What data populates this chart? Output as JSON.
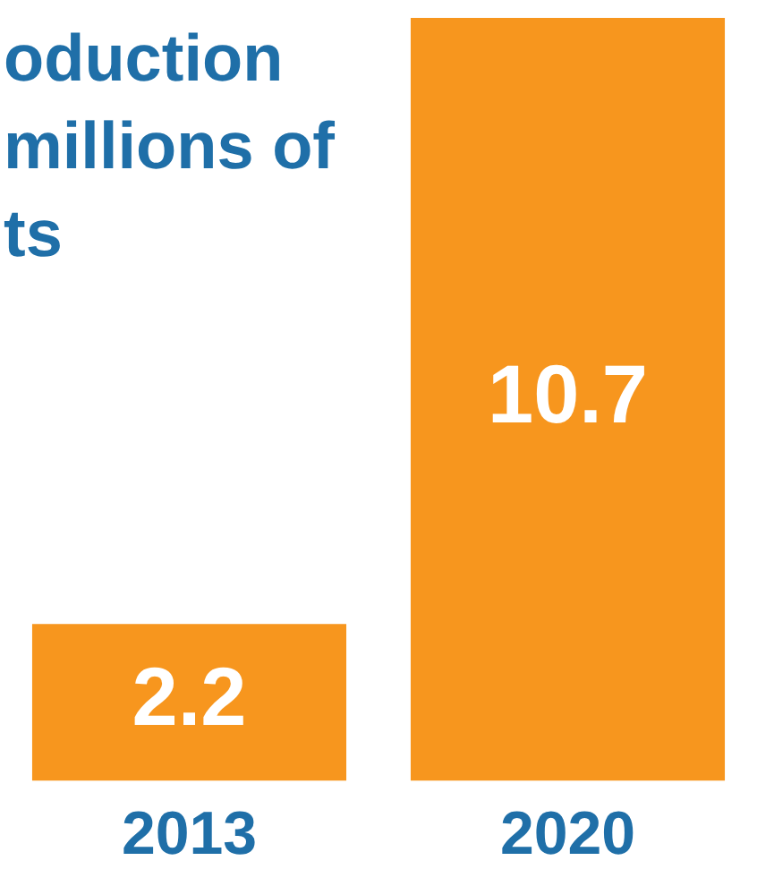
{
  "chart_data": {
    "type": "bar",
    "title": "oduction\nmillions of\nts",
    "categories": [
      "2013",
      "2020"
    ],
    "values": [
      2.2,
      10.7
    ],
    "color": "#f7961e",
    "data_labels": true
  }
}
